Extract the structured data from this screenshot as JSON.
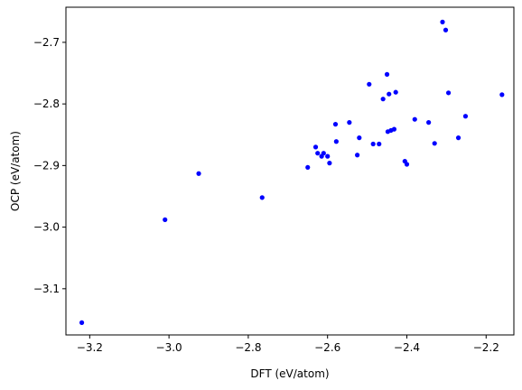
{
  "chart_data": {
    "type": "scatter",
    "title": "",
    "xlabel": "DFT (eV/atom)",
    "ylabel": "OCP (eV/atom)",
    "xlim": [
      -3.26,
      -2.13
    ],
    "ylim": [
      -3.175,
      -2.643
    ],
    "x_ticks": [
      -3.2,
      -3.0,
      -2.8,
      -2.6,
      -2.4,
      -2.2
    ],
    "x_tick_labels": [
      "−3.2",
      "−3.0",
      "−2.8",
      "−2.6",
      "−2.4",
      "−2.2"
    ],
    "y_ticks": [
      -3.1,
      -3.0,
      -2.9,
      -2.8,
      -2.7
    ],
    "y_tick_labels": [
      "−3.1",
      "−3.0",
      "−2.9",
      "−2.8",
      "−2.7"
    ],
    "grid": false,
    "marker_color": "#0000ff",
    "series": [
      {
        "points": [
          [
            -3.22,
            -3.155
          ],
          [
            -3.01,
            -2.988
          ],
          [
            -2.925,
            -2.913
          ],
          [
            -2.765,
            -2.952
          ],
          [
            -2.65,
            -2.903
          ],
          [
            -2.63,
            -2.87
          ],
          [
            -2.625,
            -2.88
          ],
          [
            -2.615,
            -2.885
          ],
          [
            -2.61,
            -2.88
          ],
          [
            -2.6,
            -2.885
          ],
          [
            -2.595,
            -2.896
          ],
          [
            -2.58,
            -2.833
          ],
          [
            -2.578,
            -2.861
          ],
          [
            -2.545,
            -2.83
          ],
          [
            -2.525,
            -2.883
          ],
          [
            -2.52,
            -2.855
          ],
          [
            -2.495,
            -2.768
          ],
          [
            -2.485,
            -2.865
          ],
          [
            -2.47,
            -2.865
          ],
          [
            -2.46,
            -2.792
          ],
          [
            -2.45,
            -2.752
          ],
          [
            -2.448,
            -2.845
          ],
          [
            -2.445,
            -2.784
          ],
          [
            -2.44,
            -2.843
          ],
          [
            -2.432,
            -2.841
          ],
          [
            -2.428,
            -2.781
          ],
          [
            -2.405,
            -2.893
          ],
          [
            -2.4,
            -2.898
          ],
          [
            -2.38,
            -2.825
          ],
          [
            -2.345,
            -2.83
          ],
          [
            -2.33,
            -2.864
          ],
          [
            -2.31,
            -2.667
          ],
          [
            -2.302,
            -2.68
          ],
          [
            -2.295,
            -2.782
          ],
          [
            -2.27,
            -2.855
          ],
          [
            -2.252,
            -2.82
          ],
          [
            -2.16,
            -2.785
          ]
        ]
      }
    ]
  }
}
